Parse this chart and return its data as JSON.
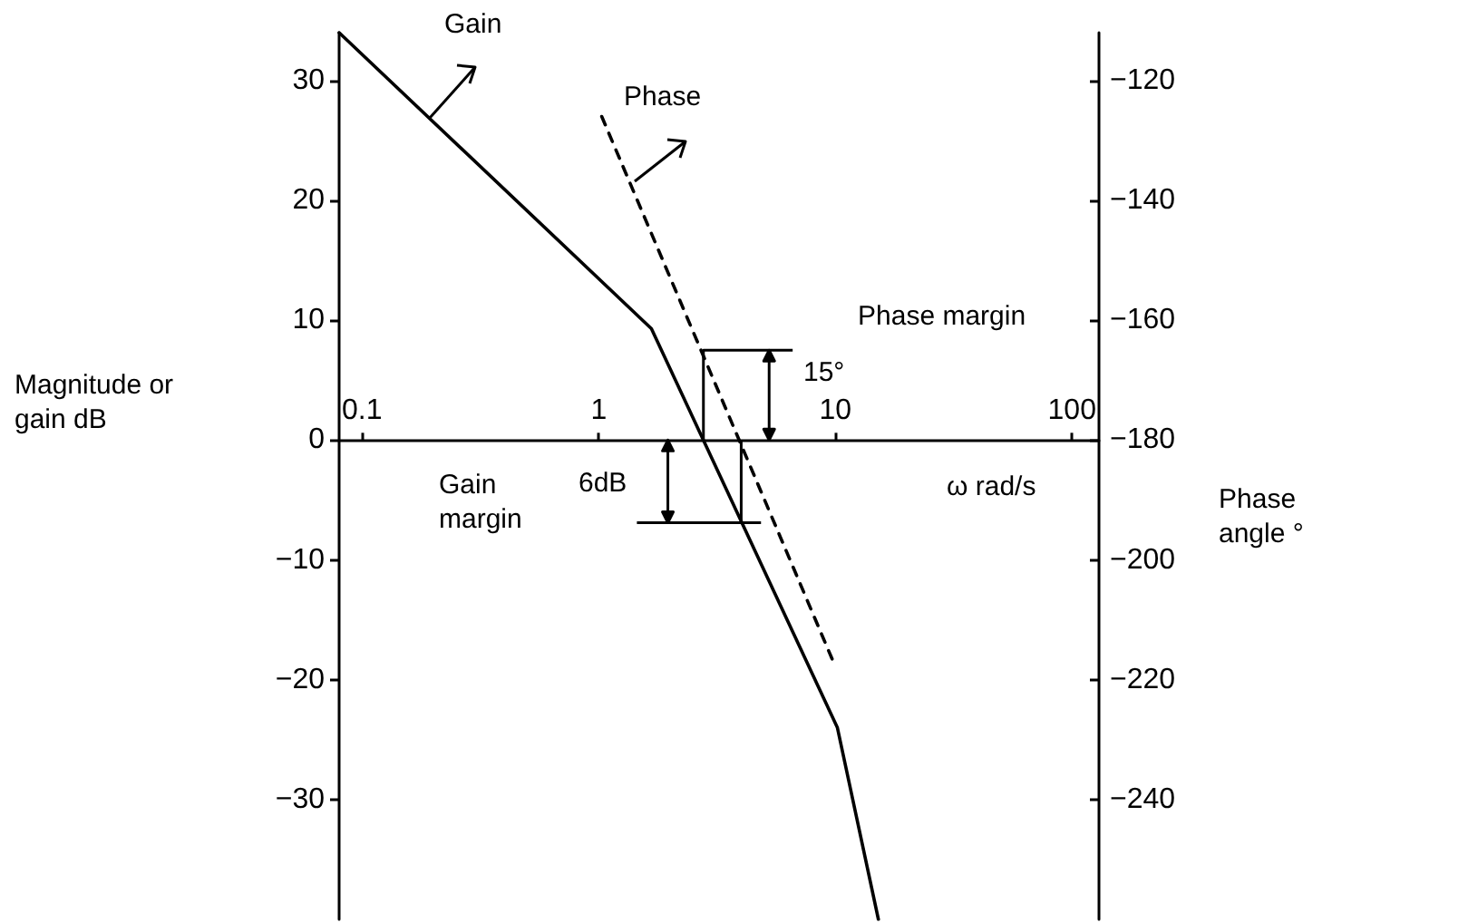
{
  "chart_data": {
    "type": "line",
    "xlabel": "ω rad/s",
    "ylabel": "Magnitude or\ngain dB",
    "y2label": "Phase\nangle °",
    "log": "x",
    "xlim": [
      0.08,
      130
    ],
    "xticks": [
      0.1,
      1,
      10,
      100
    ],
    "ylim": [
      -40,
      34
    ],
    "yticks": [
      -30,
      -20,
      -10,
      0,
      10,
      20,
      30
    ],
    "y2lim": [
      -260,
      -112
    ],
    "y2ticks": [
      -240,
      -220,
      -200,
      -180,
      -160,
      -140,
      -120
    ],
    "series": [
      {
        "name": "Gain",
        "color": "#000000",
        "x": [
          0.08,
          1.67,
          10.2,
          15.2
        ],
        "values": [
          34,
          9.3,
          -24,
          -40
        ],
        "line_style": "solid"
      },
      {
        "name": "Phase",
        "color": "#000000",
        "axis": "y2",
        "x": [
          1.03,
          9.8
        ],
        "values": [
          -126,
          -217
        ],
        "line_style": "dashed"
      }
    ],
    "annotations": [
      "Phase margin",
      {
        "text": "15°",
        "x": 2.77,
        "y": 0
      },
      "Gain margin",
      "6dB"
    ],
    "grid": false,
    "legend": false,
    "marker": "none"
  }
}
